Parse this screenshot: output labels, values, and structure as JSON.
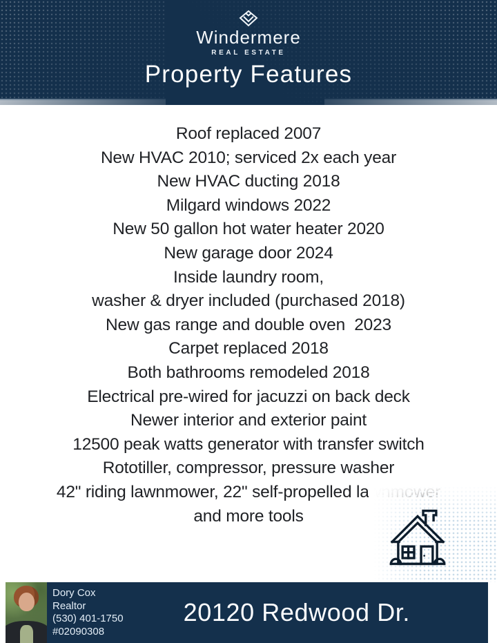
{
  "brand": {
    "name": "Windermere",
    "tagline": "REAL ESTATE",
    "logo_icon": "windermere-diamond-w-mark"
  },
  "header": {
    "title": "Property Features"
  },
  "features": [
    "Roof replaced 2007",
    "New HVAC 2010; serviced 2x each year",
    "New HVAC ducting 2018",
    "Milgard windows 2022",
    "New 50 gallon hot water heater 2020",
    "New garage door 2024",
    "Inside laundry room,",
    "washer & dryer included (purchased 2018)",
    "New gas range and double oven  2023",
    "Carpet replaced 2018",
    "Both bathrooms remodeled 2018",
    "Electrical pre-wired for jacuzzi on back deck",
    "Newer interior and exterior paint",
    "12500 peak watts generator with transfer switch",
    "Rototiller, compressor, pressure washer",
    "42\" riding lawnmower, 22\" self-propelled lawnmower",
    "and more tools"
  ],
  "decor": {
    "house_icon": "house-line-drawing",
    "halftone_patterns": [
      "top-left",
      "top-right",
      "bottom-right"
    ]
  },
  "footer": {
    "agent": {
      "name": "Dory Cox",
      "title": "Realtor",
      "phone": "(530) 401-1750",
      "license": "#02090308"
    },
    "address": "20120 Redwood Dr."
  },
  "colors": {
    "navy": "#14304c",
    "divider": "#b7c5d2",
    "text": "#1f2125",
    "dots_body": "#c8dbe9",
    "house": "#0d1d2c",
    "footer_text": "#e3edf6"
  }
}
